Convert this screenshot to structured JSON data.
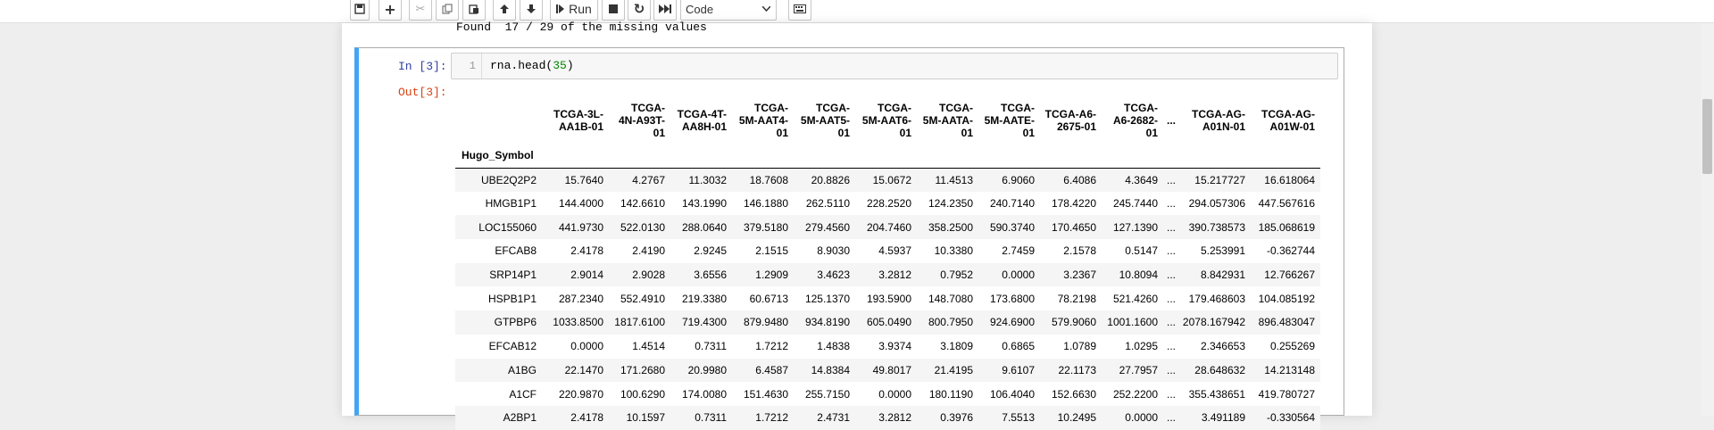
{
  "toolbar": {
    "run_label": "Run",
    "cell_type": "Code",
    "cell_type_options": [
      "Code"
    ]
  },
  "output_prev": {
    "text": "Found  17 / 29 of the missing values"
  },
  "cell": {
    "in_prompt": "In [3]:",
    "out_prompt": "Out[3]:",
    "line_number": "1",
    "code_prefix": "rna.head(",
    "code_arg": "35",
    "code_suffix": ")"
  },
  "table": {
    "index_name": "Hugo_Symbol",
    "columns": [
      [
        "TCGA-3L-",
        "AA1B-01"
      ],
      [
        "TCGA-",
        "4N-A93T-",
        "01"
      ],
      [
        "TCGA-4T-",
        "AA8H-01"
      ],
      [
        "TCGA-",
        "5M-AAT4-",
        "01"
      ],
      [
        "TCGA-",
        "5M-AAT5-",
        "01"
      ],
      [
        "TCGA-",
        "5M-AAT6-",
        "01"
      ],
      [
        "TCGA-",
        "5M-AATA-",
        "01"
      ],
      [
        "TCGA-",
        "5M-AATE-",
        "01"
      ],
      [
        "TCGA-A6-",
        "2675-01"
      ],
      [
        "TCGA-",
        "A6-2682-",
        "01"
      ],
      [
        "..."
      ],
      [
        "TCGA-AG-",
        "A01N-01"
      ],
      [
        "TCGA-AG-",
        "A01W-01"
      ]
    ],
    "rows": [
      {
        "label": "UBE2Q2P2",
        "values": [
          "15.7640",
          "4.2767",
          "11.3032",
          "18.7608",
          "20.8826",
          "15.0672",
          "11.4513",
          "6.9060",
          "6.4086",
          "4.3649",
          "...",
          "15.217727",
          "16.618064"
        ]
      },
      {
        "label": "HMGB1P1",
        "values": [
          "144.4000",
          "142.6610",
          "143.1990",
          "146.1880",
          "262.5110",
          "228.2520",
          "124.2350",
          "240.7140",
          "178.4220",
          "245.7440",
          "...",
          "294.057306",
          "447.567616"
        ]
      },
      {
        "label": "LOC155060",
        "values": [
          "441.9730",
          "522.0130",
          "288.0640",
          "379.5180",
          "279.4560",
          "204.7460",
          "358.2500",
          "590.3740",
          "170.4650",
          "127.1390",
          "...",
          "390.738573",
          "185.068619"
        ]
      },
      {
        "label": "EFCAB8",
        "values": [
          "2.4178",
          "2.4190",
          "2.9245",
          "2.1515",
          "8.9030",
          "4.5937",
          "10.3380",
          "2.7459",
          "2.1578",
          "0.5147",
          "...",
          "5.253991",
          "-0.362744"
        ]
      },
      {
        "label": "SRP14P1",
        "values": [
          "2.9014",
          "2.9028",
          "3.6556",
          "1.2909",
          "3.4623",
          "3.2812",
          "0.7952",
          "0.0000",
          "3.2367",
          "10.8094",
          "...",
          "8.842931",
          "12.766267"
        ]
      },
      {
        "label": "HSPB1P1",
        "values": [
          "287.2340",
          "552.4910",
          "219.3380",
          "60.6713",
          "125.1370",
          "193.5900",
          "148.7080",
          "173.6800",
          "78.2198",
          "521.4260",
          "...",
          "179.468603",
          "104.085192"
        ]
      },
      {
        "label": "GTPBP6",
        "values": [
          "1033.8500",
          "1817.6100",
          "719.4300",
          "879.9480",
          "934.8190",
          "605.0490",
          "800.7950",
          "924.6900",
          "579.9060",
          "1001.1600",
          "...",
          "2078.167942",
          "896.483047"
        ]
      },
      {
        "label": "EFCAB12",
        "values": [
          "0.0000",
          "1.4514",
          "0.7311",
          "1.7212",
          "1.4838",
          "3.9374",
          "3.1809",
          "0.6865",
          "1.0789",
          "1.0295",
          "...",
          "2.346653",
          "0.255269"
        ]
      },
      {
        "label": "A1BG",
        "values": [
          "22.1470",
          "171.2680",
          "20.9980",
          "6.4587",
          "14.8384",
          "49.8017",
          "21.4195",
          "9.6107",
          "22.1173",
          "27.7957",
          "...",
          "28.648632",
          "14.213148"
        ]
      },
      {
        "label": "A1CF",
        "values": [
          "220.9870",
          "100.6290",
          "174.0080",
          "151.4630",
          "255.7150",
          "0.0000",
          "180.1190",
          "106.4040",
          "152.6630",
          "252.2200",
          "...",
          "355.438651",
          "419.780727"
        ]
      },
      {
        "label": "A2BP1",
        "values": [
          "2.4178",
          "10.1597",
          "0.7311",
          "1.7212",
          "2.4731",
          "3.2812",
          "0.3976",
          "7.5513",
          "10.2495",
          "0.0000",
          "...",
          "3.491189",
          "-0.330564"
        ]
      }
    ]
  }
}
